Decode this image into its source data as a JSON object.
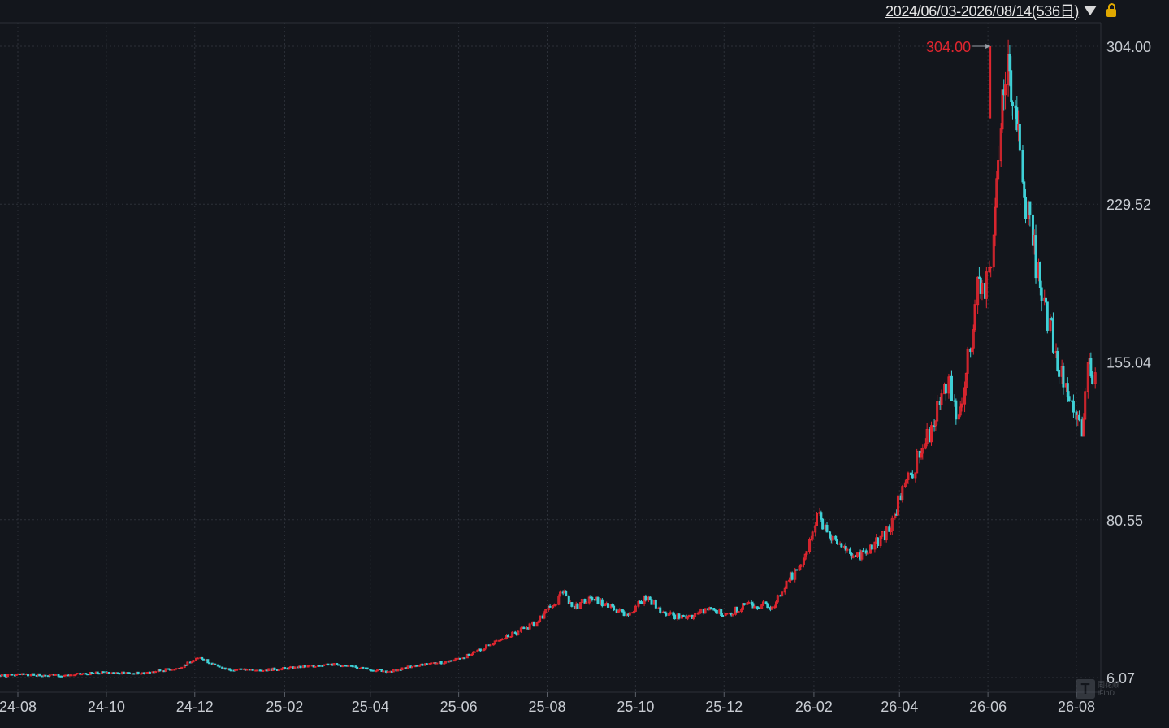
{
  "header": {
    "range_label": "2024/06/03-2026/08/14(536日)"
  },
  "icons": {
    "dropdown": "triangle-down-icon",
    "lock": "lock-icon",
    "watermark": "app-logo-icon"
  },
  "watermark": {
    "glyph": "T",
    "line1": "同花顺",
    "line2": "iFinD"
  },
  "colors": {
    "background": "#13161c",
    "up": "#e0262f",
    "down": "#3fd0d6",
    "grid": "#2c3038",
    "axis_text": "#c8ccd2",
    "max_label": "#e0262f"
  },
  "chart_data": {
    "type": "candlestick",
    "title": "",
    "xlabel": "",
    "ylabel": "",
    "y_ticks": [
      "304.00",
      "229.52",
      "155.04",
      "80.55",
      "6.07"
    ],
    "ylim": [
      6.07,
      304.0
    ],
    "x_ticks": [
      "24-08",
      "24-10",
      "24-12",
      "25-02",
      "25-04",
      "25-06",
      "25-08",
      "25-10",
      "25-12",
      "26-02",
      "26-04",
      "26-06",
      "26-08"
    ],
    "x_range": [
      "2024-06-03",
      "2026-08-14"
    ],
    "grid": true,
    "max_marker": {
      "label": "304.00",
      "value": 304.0,
      "date": "2026-06-01"
    },
    "series": [
      {
        "points": [
          [
            "2024-06-20",
            6.3,
            7.0
          ],
          [
            "2024-07-15",
            7.0,
            6.8
          ],
          [
            "2024-08-10",
            6.8,
            7.5
          ],
          [
            "2024-09-05",
            7.5,
            7.2
          ],
          [
            "2024-10-01",
            7.2,
            8.5
          ],
          [
            "2024-10-25",
            8.5,
            8.0
          ],
          [
            "2024-11-20",
            8.0,
            10.5
          ],
          [
            "2024-12-05",
            10.5,
            15.5
          ],
          [
            "2024-12-20",
            15.5,
            10.2
          ],
          [
            "2025-01-15",
            10.2,
            9.5
          ],
          [
            "2025-02-10",
            9.5,
            10.8
          ],
          [
            "2025-03-05",
            10.8,
            12.5
          ],
          [
            "2025-03-25",
            12.5,
            10.5
          ],
          [
            "2025-04-15",
            10.5,
            9.0
          ],
          [
            "2025-05-05",
            9.0,
            12.0
          ],
          [
            "2025-05-25",
            12.0,
            13.5
          ],
          [
            "2025-06-10",
            13.5,
            17.0
          ],
          [
            "2025-06-25",
            17.0,
            22.0
          ],
          [
            "2025-07-10",
            22.0,
            27.0
          ],
          [
            "2025-07-25",
            27.0,
            32.0
          ],
          [
            "2025-08-05",
            32.0,
            40.0
          ],
          [
            "2025-08-12",
            40.0,
            46.0
          ],
          [
            "2025-08-20",
            46.0,
            39.0
          ],
          [
            "2025-08-30",
            39.0,
            44.0
          ],
          [
            "2025-09-10",
            44.0,
            40.5
          ],
          [
            "2025-09-25",
            40.5,
            36.0
          ],
          [
            "2025-10-10",
            36.0,
            44.0
          ],
          [
            "2025-10-20",
            44.0,
            37.0
          ],
          [
            "2025-11-05",
            37.0,
            34.0
          ],
          [
            "2025-11-20",
            34.0,
            38.0
          ],
          [
            "2025-12-05",
            38.0,
            36.5
          ],
          [
            "2025-12-20",
            36.5,
            41.0
          ],
          [
            "2026-01-05",
            41.0,
            39.5
          ],
          [
            "2026-01-15",
            39.5,
            52.0
          ],
          [
            "2026-01-25",
            52.0,
            62.0
          ],
          [
            "2026-02-05",
            62.0,
            84.0
          ],
          [
            "2026-02-12",
            84.0,
            72.0
          ],
          [
            "2026-02-22",
            72.0,
            68.0
          ],
          [
            "2026-03-05",
            68.0,
            62.0
          ],
          [
            "2026-03-15",
            62.0,
            70.0
          ],
          [
            "2026-03-25",
            70.0,
            75.0
          ],
          [
            "2026-04-05",
            75.0,
            98.0
          ],
          [
            "2026-04-15",
            98.0,
            110.0
          ],
          [
            "2026-04-25",
            110.0,
            125.0
          ],
          [
            "2026-05-05",
            125.0,
            148.0
          ],
          [
            "2026-05-12",
            148.0,
            130.0
          ],
          [
            "2026-05-20",
            130.0,
            160.0
          ],
          [
            "2026-05-25",
            160.0,
            195.0
          ],
          [
            "2026-05-30",
            195.0,
            185.0
          ],
          [
            "2026-06-05",
            185.0,
            215.0
          ],
          [
            "2026-06-10",
            215.0,
            265.0
          ],
          [
            "2026-06-15",
            265.0,
            300.0
          ],
          [
            "2026-06-20",
            300.0,
            275.0
          ],
          [
            "2026-06-25",
            275.0,
            240.0
          ],
          [
            "2026-07-02",
            240.0,
            210.0
          ],
          [
            "2026-07-10",
            210.0,
            185.0
          ],
          [
            "2026-07-18",
            185.0,
            160.0
          ],
          [
            "2026-07-25",
            160.0,
            145.0
          ],
          [
            "2026-08-01",
            145.0,
            128.0
          ],
          [
            "2026-08-05",
            128.0,
            120.0
          ],
          [
            "2026-08-09",
            120.0,
            155.0
          ],
          [
            "2026-08-14",
            155.0,
            150.0
          ]
        ]
      }
    ]
  }
}
